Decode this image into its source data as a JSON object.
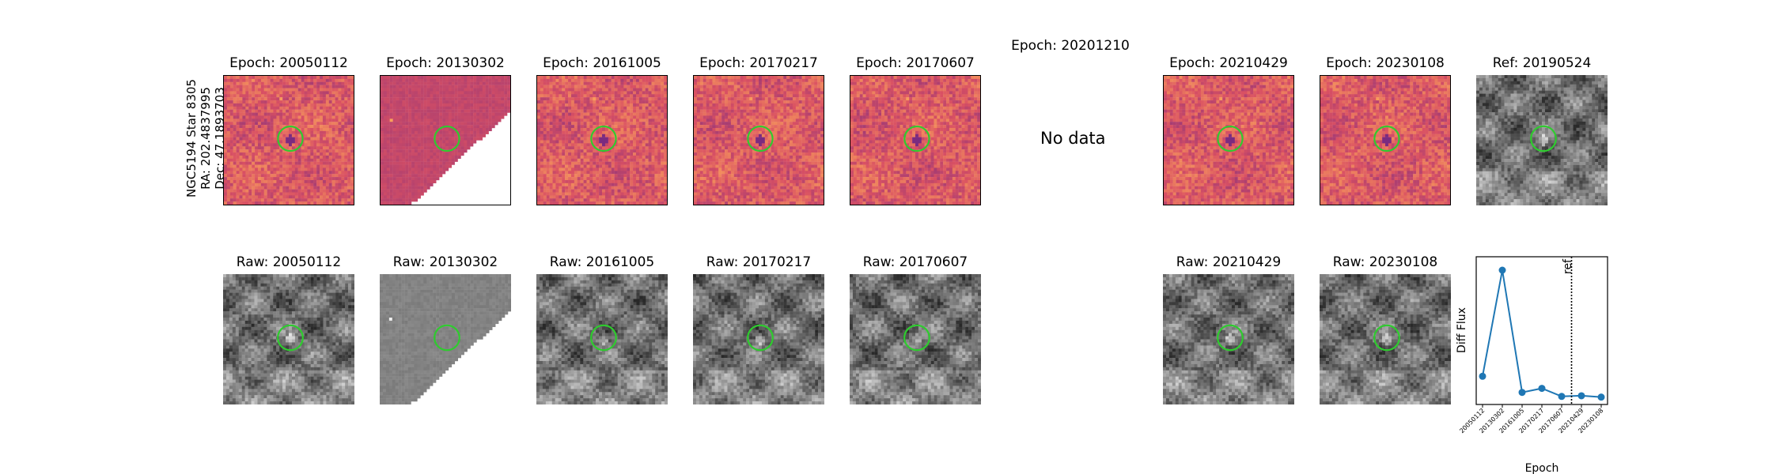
{
  "row_label": {
    "line1": "NGC5194 Star 8305",
    "line2": "RA: 202.4837995",
    "line3": "Dec: 47.1893703"
  },
  "top_row": [
    {
      "title": "Epoch: 20050112",
      "kind": "diff"
    },
    {
      "title": "Epoch: 20130302",
      "kind": "diff-partial"
    },
    {
      "title": "Epoch: 20161005",
      "kind": "diff"
    },
    {
      "title": "Epoch: 20170217",
      "kind": "diff"
    },
    {
      "title": "Epoch: 20170607",
      "kind": "diff"
    },
    {
      "title": "Epoch: 20201210",
      "kind": "nodata"
    },
    {
      "title": "Epoch: 20210429",
      "kind": "diff"
    },
    {
      "title": "Epoch: 20230108",
      "kind": "diff"
    },
    {
      "title": "Ref: 20190524",
      "kind": "ref"
    }
  ],
  "no_data_text": "No data",
  "bottom_row": [
    {
      "title": "Raw: 20050112",
      "kind": "raw"
    },
    {
      "title": "Raw: 20130302",
      "kind": "raw-partial"
    },
    {
      "title": "Raw: 20161005",
      "kind": "raw"
    },
    {
      "title": "Raw: 20170217",
      "kind": "raw"
    },
    {
      "title": "Raw: 20170607",
      "kind": "raw"
    },
    {
      "title": "Raw: 20210429",
      "kind": "raw"
    },
    {
      "title": "Raw: 20230108",
      "kind": "raw"
    }
  ],
  "colors": {
    "aperture": "#2ecc2e",
    "series": "#1f77b4",
    "magma_low": "#7a2b80",
    "magma_mid": "#d95063",
    "magma_high": "#fba35a"
  },
  "chart_data": {
    "type": "line",
    "xlabel": "Epoch",
    "ylabel": "Diff Flux",
    "categories": [
      "20050112",
      "20130302",
      "20161005",
      "20170217",
      "20170607",
      "20210429",
      "20230108"
    ],
    "values": [
      0.16,
      0.95,
      0.04,
      0.07,
      0.01,
      0.015,
      0.005
    ],
    "ylim": [
      -0.05,
      1.05
    ],
    "ref_line": {
      "label": "ref",
      "position_between": [
        "20170607",
        "20210429"
      ]
    },
    "y_ticks_shown": false
  }
}
